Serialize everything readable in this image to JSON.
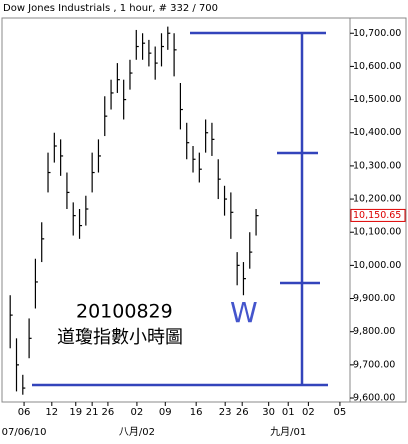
{
  "chart_data": {
    "type": "hlc",
    "title": "Dow Jones Industrials , 1 hour, # 332 / 700",
    "annotations": [
      "20100829",
      "道瓊指數小時圖",
      "W"
    ],
    "x": [
      0,
      1,
      2,
      3,
      4,
      5,
      6,
      7,
      8,
      9,
      10,
      11,
      12,
      13,
      14,
      15,
      16,
      17,
      18,
      19,
      20,
      21,
      22,
      23,
      24,
      25,
      26,
      27,
      28,
      29,
      30,
      31,
      32,
      33,
      34,
      35,
      36,
      37,
      38,
      39
    ],
    "series": [
      {
        "name": "high",
        "values": [
          9910,
          9780,
          9670,
          9840,
          10020,
          10130,
          10340,
          10400,
          10380,
          10280,
          10190,
          10170,
          10210,
          10340,
          10380,
          10510,
          10560,
          10610,
          10560,
          10620,
          10710,
          10700,
          10680,
          10660,
          10700,
          10720,
          10700,
          10550,
          10430,
          10360,
          10340,
          10440,
          10430,
          10320,
          10240,
          10220,
          10040,
          10010,
          10100,
          10170
        ]
      },
      {
        "name": "low",
        "values": [
          9750,
          9620,
          9610,
          9720,
          9870,
          10010,
          10220,
          10310,
          10270,
          10170,
          10090,
          10080,
          10120,
          10220,
          10280,
          10390,
          10470,
          10520,
          10440,
          10530,
          10620,
          10620,
          10600,
          10560,
          10600,
          10650,
          10570,
          10410,
          10320,
          10280,
          10250,
          10340,
          10330,
          10200,
          10150,
          10080,
          9940,
          9910,
          9990,
          10090
        ]
      },
      {
        "name": "close",
        "values": [
          9850,
          9700,
          9630,
          9780,
          9950,
          10080,
          10280,
          10360,
          10330,
          10220,
          10150,
          10120,
          10170,
          10280,
          10330,
          10450,
          10520,
          10560,
          10500,
          10580,
          10660,
          10670,
          10640,
          10610,
          10660,
          10700,
          10650,
          10470,
          10370,
          10320,
          10290,
          10400,
          10380,
          10260,
          10200,
          10160,
          10000,
          9960,
          10040,
          10150
        ]
      }
    ],
    "color": "#000000",
    "last": {
      "value": 10150.65,
      "label": "10,150.65"
    },
    "xlim": [
      -1.3,
      53.9
    ],
    "xticks": [
      {
        "value": 2.2,
        "label": "06"
      },
      {
        "value": 6.6,
        "label": "12"
      },
      {
        "value": 10.4,
        "label": "19"
      },
      {
        "value": 13,
        "label": "21"
      },
      {
        "value": 15.5,
        "label": "26"
      },
      {
        "value": 20.1,
        "label": "02"
      },
      {
        "value": 24.6,
        "label": "09"
      },
      {
        "value": 29.5,
        "label": "16"
      },
      {
        "value": 34.1,
        "label": "23"
      },
      {
        "value": 36.8,
        "label": "26"
      },
      {
        "value": 41,
        "label": "30"
      },
      {
        "value": 44.1,
        "label": "01"
      },
      {
        "value": 47.3,
        "label": "02"
      },
      {
        "value": 52.3,
        "label": "05"
      }
    ],
    "xticks_major": [
      {
        "value": 2.2,
        "label": "07/06/10"
      },
      {
        "value": 20.1,
        "label": "八月/02"
      },
      {
        "value": 44.1,
        "label": "九月/01"
      }
    ],
    "ylim": [
      9588,
      10746
    ],
    "yticks": [
      {
        "value": 9600,
        "label": "9,600.00"
      },
      {
        "value": 9700,
        "label": "9,700.00"
      },
      {
        "value": 9800,
        "label": "9,800.00"
      },
      {
        "value": 9900,
        "label": "9,900.00"
      },
      {
        "value": 10000,
        "label": "10,000.00"
      },
      {
        "value": 10100,
        "label": "10,100.00"
      },
      {
        "value": 10200,
        "label": "10,200.00"
      },
      {
        "value": 10300,
        "label": "10,300.00"
      },
      {
        "value": 10400,
        "label": "10,400.00"
      },
      {
        "value": 10500,
        "label": "10,500.00"
      },
      {
        "value": 10600,
        "label": "10,600.00"
      },
      {
        "value": 10700,
        "label": "10,700.00"
      }
    ]
  }
}
